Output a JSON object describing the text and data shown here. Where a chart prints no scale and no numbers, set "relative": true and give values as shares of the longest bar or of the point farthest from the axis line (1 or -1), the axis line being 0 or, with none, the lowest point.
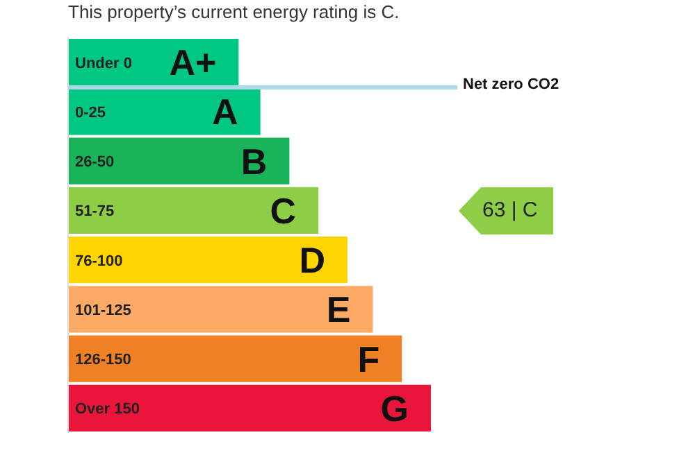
{
  "chart_data": {
    "type": "bar",
    "orientation": "horizontal",
    "relative": true,
    "title": "This property’s current energy rating is C.",
    "categories": [
      "Under 0",
      "0-25",
      "26-50",
      "51-75",
      "76-100",
      "101-125",
      "126-150",
      "Over 150"
    ],
    "values": [
      0.47,
      0.53,
      0.61,
      0.69,
      0.77,
      0.84,
      0.92,
      1
    ],
    "colors": [
      "#00c781",
      "#00c781",
      "#19b459",
      "#8dce46",
      "#ffd500",
      "#fcaa65",
      "#ef8023",
      "#e9153b"
    ],
    "ref_lines": [
      {
        "axis": "y",
        "value": "0-25",
        "label": "Net zero CO2",
        "color": "#add8e6"
      }
    ],
    "annotations": [
      "63 | C",
      "A+",
      "A",
      "B",
      "C",
      "D",
      "E",
      "F",
      "G"
    ]
  }
}
